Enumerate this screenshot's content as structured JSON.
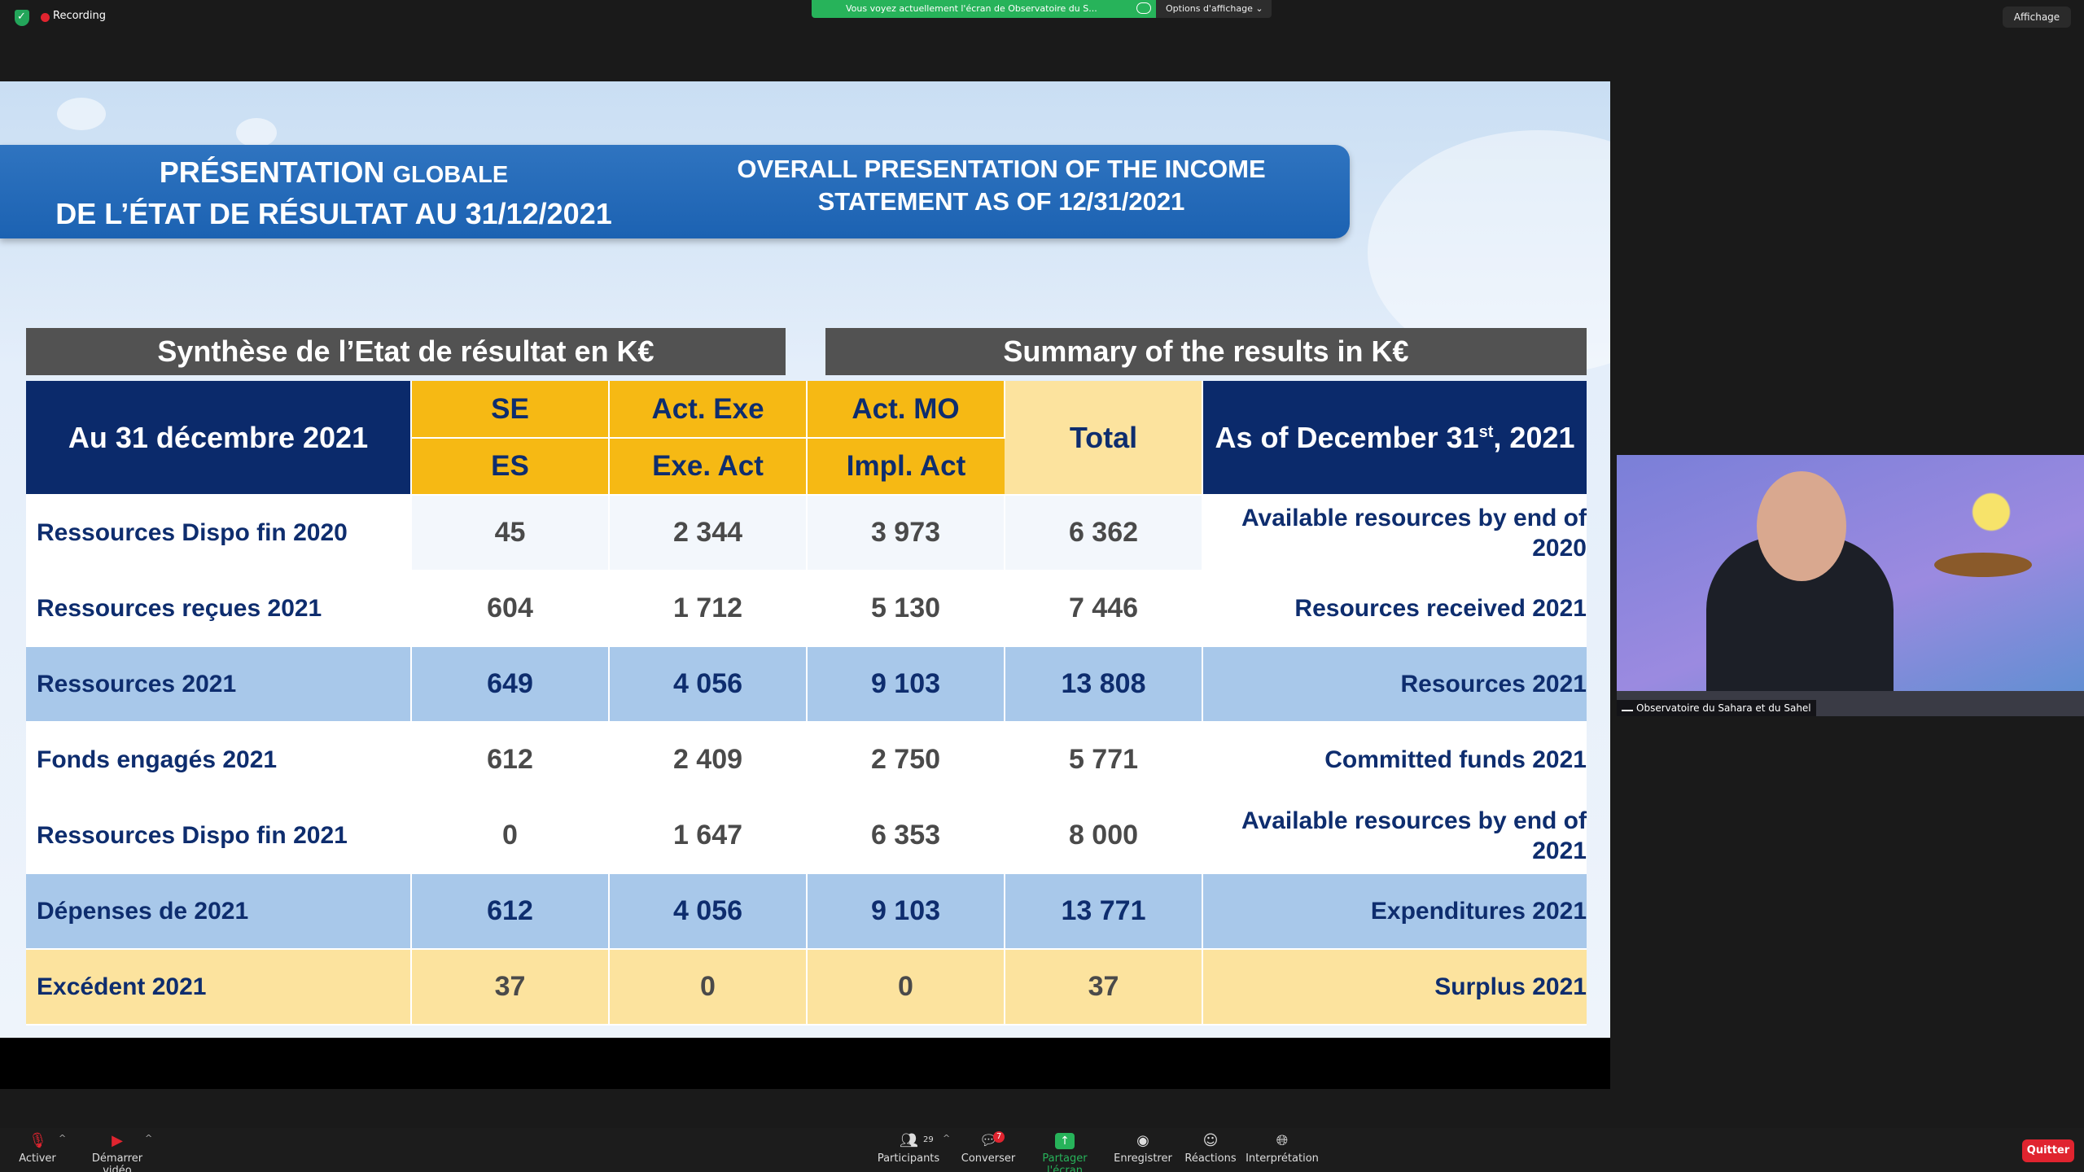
{
  "topbar": {
    "recording_label": "Recording",
    "share_banner": "Vous voyez actuellement l'écran de Observatoire du S...",
    "view_options": "Options d'affichage ⌄",
    "affichage": "Affichage"
  },
  "slide": {
    "title_fr_line1_big": "PRÉSENTATION",
    "title_fr_line1_small": "GLOBALE",
    "title_fr_line2": "DE L’ÉTAT DE RÉSULTAT AU 31/12/2021",
    "title_en_line1": "OVERALL PRESENTATION OF THE INCOME",
    "title_en_line2": "STATEMENT AS OF 12/31/2021",
    "summary_fr": "Synthèse de l’Etat de résultat en K€",
    "summary_en": "Summary of the results in K€",
    "table": {
      "header": {
        "date_fr": "Au 31 décembre 2021",
        "se": "SE",
        "es": "ES",
        "act_exe": "Act. Exe",
        "exe_act": "Exe. Act",
        "act_mo": "Act. MO",
        "impl_act": "Impl. Act",
        "total": "Total",
        "date_en_pre": "As of December 31",
        "date_en_sup": "st",
        "date_en_post": ", 2021"
      },
      "rows": [
        {
          "fr": "Ressources Dispo fin 2020",
          "se": "45",
          "exe": "2 344",
          "mo": "3 973",
          "total": "6 362",
          "en": "Available resources by end of 2020"
        },
        {
          "fr": "Ressources reçues 2021",
          "se": "604",
          "exe": "1 712",
          "mo": "5 130",
          "total": "7 446",
          "en": "Resources received 2021"
        },
        {
          "fr": "Ressources 2021",
          "se": "649",
          "exe": "4 056",
          "mo": "9 103",
          "total": "13 808",
          "en": "Resources 2021"
        },
        {
          "fr": "Fonds engagés 2021",
          "se": "612",
          "exe": "2 409",
          "mo": "2 750",
          "total": "5 771",
          "en": "Committed funds 2021"
        },
        {
          "fr": "Ressources Dispo fin 2021",
          "se": "0",
          "exe": "1 647",
          "mo": "6 353",
          "total": "8 000",
          "en": "Available resources by end of 2021"
        },
        {
          "fr": "Dépenses de 2021",
          "se": "612",
          "exe": "4 056",
          "mo": "9 103",
          "total": "13 771",
          "en": "Expenditures 2021"
        },
        {
          "fr": "Excédent 2021",
          "se": "37",
          "exe": "0",
          "mo": "0",
          "total": "37",
          "en": "Surplus 2021"
        }
      ]
    }
  },
  "video": {
    "participant_name": "Observatoire du Sahara et du Sahel"
  },
  "toolbar": {
    "mute_label": "Activer",
    "video_label": "Démarrer vidéo",
    "participants_label": "Participants",
    "participants_count": "29",
    "chat_label": "Converser",
    "chat_badge": "7",
    "share_label": "Partager l'écran",
    "record_label": "Enregistrer",
    "reactions_label": "Réactions",
    "interpretation_label": "Interprétation",
    "quit_label": "Quitter"
  }
}
